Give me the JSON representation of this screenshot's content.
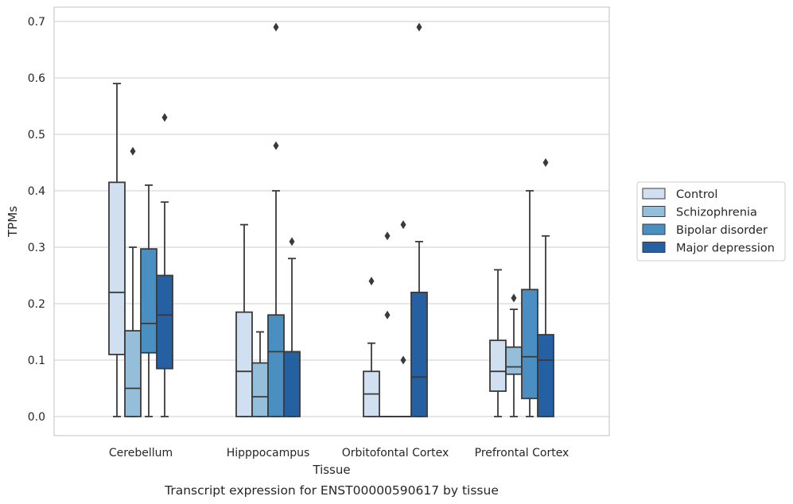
{
  "caption": "Transcript expression for ENST00000590617 by tissue",
  "colors": {
    "control": "#d0e0f0",
    "schizophrenia": "#94bed9",
    "bipolar": "#4a8fc1",
    "depression": "#2460a2",
    "box_edge": "#3a3a3a",
    "grid": "#cccccc",
    "frame": "#cccccc"
  },
  "chart_data": {
    "type": "box",
    "xlabel": "Tissue",
    "ylabel": "TPMs",
    "ylim": [
      -0.035,
      0.725
    ],
    "yticks": [
      0.0,
      0.1,
      0.2,
      0.3,
      0.4,
      0.5,
      0.6,
      0.7
    ],
    "ytick_labels": [
      "0.0",
      "0.1",
      "0.2",
      "0.3",
      "0.4",
      "0.5",
      "0.6",
      "0.7"
    ],
    "grid": true,
    "legend_position": "right",
    "categories": [
      "Cerebellum",
      "Hipppocampus",
      "Orbitofontal Cortex",
      "Prefrontal Cortex"
    ],
    "series": [
      {
        "name": "Control",
        "boxes": [
          {
            "whisker_low": 0.0,
            "q1": 0.11,
            "median": 0.22,
            "q3": 0.415,
            "whisker_high": 0.59,
            "outliers": []
          },
          {
            "whisker_low": 0.0,
            "q1": 0.0,
            "median": 0.08,
            "q3": 0.185,
            "whisker_high": 0.34,
            "outliers": []
          },
          {
            "whisker_low": 0.0,
            "q1": 0.0,
            "median": 0.04,
            "q3": 0.08,
            "whisker_high": 0.13,
            "outliers": [
              0.24
            ]
          },
          {
            "whisker_low": 0.0,
            "q1": 0.045,
            "median": 0.08,
            "q3": 0.135,
            "whisker_high": 0.26,
            "outliers": []
          }
        ]
      },
      {
        "name": "Schizophrenia",
        "boxes": [
          {
            "whisker_low": 0.0,
            "q1": 0.0,
            "median": 0.05,
            "q3": 0.152,
            "whisker_high": 0.3,
            "outliers": [
              0.47
            ]
          },
          {
            "whisker_low": 0.0,
            "q1": 0.0,
            "median": 0.035,
            "q3": 0.095,
            "whisker_high": 0.15,
            "outliers": []
          },
          {
            "whisker_low": 0.0,
            "q1": 0.0,
            "median": 0.0,
            "q3": 0.0,
            "whisker_high": 0.0,
            "outliers": [
              0.18,
              0.32
            ]
          },
          {
            "whisker_low": 0.0,
            "q1": 0.075,
            "median": 0.088,
            "q3": 0.123,
            "whisker_high": 0.19,
            "outliers": [
              0.21
            ]
          }
        ]
      },
      {
        "name": "Bipolar disorder",
        "boxes": [
          {
            "whisker_low": 0.0,
            "q1": 0.113,
            "median": 0.165,
            "q3": 0.297,
            "whisker_high": 0.41,
            "outliers": []
          },
          {
            "whisker_low": 0.0,
            "q1": 0.0,
            "median": 0.115,
            "q3": 0.18,
            "whisker_high": 0.4,
            "outliers": [
              0.48,
              0.69
            ]
          },
          {
            "whisker_low": 0.0,
            "q1": 0.0,
            "median": 0.0,
            "q3": 0.0,
            "whisker_high": 0.0,
            "outliers": [
              0.1,
              0.34
            ]
          },
          {
            "whisker_low": 0.0,
            "q1": 0.032,
            "median": 0.106,
            "q3": 0.225,
            "whisker_high": 0.4,
            "outliers": []
          }
        ]
      },
      {
        "name": "Major depression",
        "boxes": [
          {
            "whisker_low": 0.0,
            "q1": 0.085,
            "median": 0.18,
            "q3": 0.25,
            "whisker_high": 0.38,
            "outliers": [
              0.53
            ]
          },
          {
            "whisker_low": 0.0,
            "q1": 0.0,
            "median": 0.115,
            "q3": 0.115,
            "whisker_high": 0.28,
            "outliers": [
              0.31
            ]
          },
          {
            "whisker_low": 0.0,
            "q1": 0.0,
            "median": 0.07,
            "q3": 0.22,
            "whisker_high": 0.31,
            "outliers": [
              0.69
            ]
          },
          {
            "whisker_low": 0.0,
            "q1": 0.0,
            "median": 0.1,
            "q3": 0.145,
            "whisker_high": 0.32,
            "outliers": [
              0.45
            ]
          }
        ]
      }
    ]
  }
}
